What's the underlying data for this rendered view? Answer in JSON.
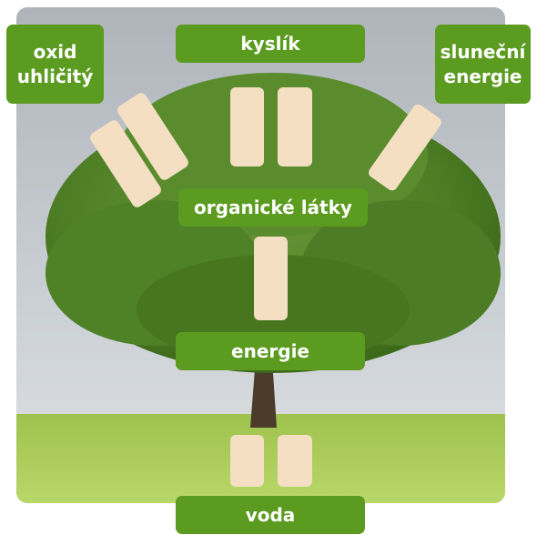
{
  "labels": [
    "oxid uhličitý",
    "kyslík",
    "sluneční energie",
    "organické látky",
    "energie",
    "voda"
  ]
}
